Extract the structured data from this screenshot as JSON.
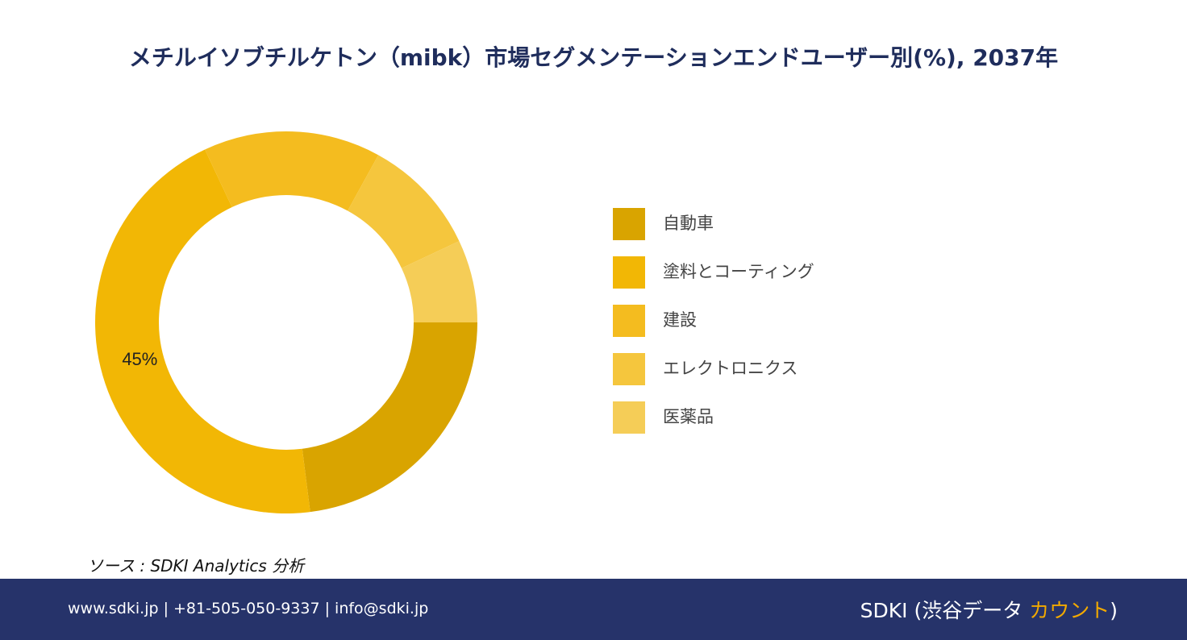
{
  "title": "メチルイソブチルケトン（mibk）市場セグメンテーションエンドユーザー別(%), 2037年",
  "chart_data": {
    "type": "donut",
    "categories": [
      "自動車",
      "塗料とコーティング",
      "建設",
      "エレクトロニクス",
      "医薬品"
    ],
    "values": [
      23,
      45,
      15,
      10,
      7
    ],
    "value_labels": [
      null,
      "45%",
      null,
      null,
      null
    ],
    "colors": [
      "#d9a400",
      "#f2b705",
      "#f4bc1f",
      "#f5c63d",
      "#f5cd57"
    ]
  },
  "source": "ソース : SDKI Analytics  分析",
  "footer": {
    "contact": "www.sdki.jp | +81-505-050-9337 | info@sdki.jp",
    "brand": "SDKI (渋谷データ ",
    "brand_accent": "カウント",
    "brand_end": ")"
  }
}
